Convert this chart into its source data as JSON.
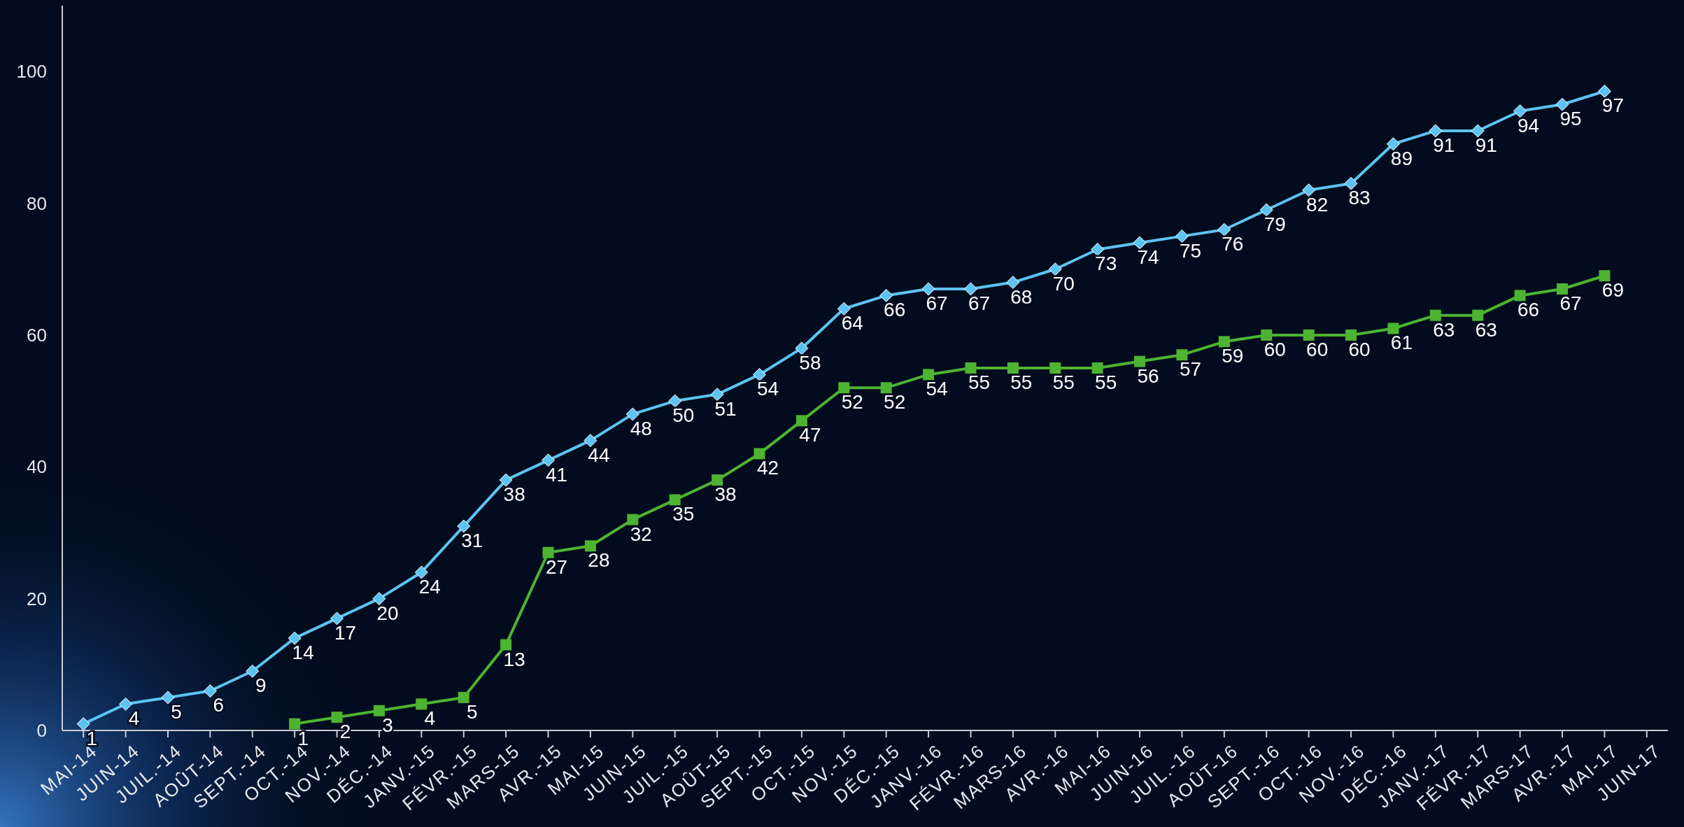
{
  "chart_data": {
    "type": "line",
    "categories": [
      "MAI-14",
      "JUIN-14",
      "JUIL.-14",
      "AOÛT-14",
      "SEPT.-14",
      "OCT.-14",
      "NOV.-14",
      "DÉC.-14",
      "JANV.-15",
      "FÉVR.-15",
      "MARS-15",
      "AVR.-15",
      "MAI-15",
      "JUIN-15",
      "JUIL.-15",
      "AOÛT-15",
      "SEPT.-15",
      "OCT.-15",
      "NOV.-15",
      "DÉC.-15",
      "JANV.-16",
      "FÉVR.-16",
      "MARS-16",
      "AVR.-16",
      "MAI-16",
      "JUIN-16",
      "JUIL.-16",
      "AOÛT-16",
      "SEPT.-16",
      "OCT.-16",
      "NOV.-16",
      "DÉC.-16",
      "JANV.-17",
      "FÉVR.-17",
      "MARS-17",
      "AVR.-17",
      "MAI-17",
      "JUIN-17"
    ],
    "series": [
      {
        "color": "#5cc3f2",
        "marker": "diamond",
        "values": [
          1,
          4,
          5,
          6,
          9,
          14,
          17,
          20,
          24,
          31,
          38,
          41,
          44,
          48,
          50,
          51,
          54,
          58,
          64,
          66,
          67,
          67,
          68,
          70,
          73,
          74,
          75,
          76,
          79,
          82,
          83,
          89,
          91,
          91,
          94,
          95,
          97,
          null
        ]
      },
      {
        "color": "#4db431",
        "marker": "square",
        "values": [
          null,
          null,
          null,
          null,
          null,
          1,
          2,
          3,
          4,
          5,
          13,
          27,
          28,
          32,
          35,
          38,
          42,
          47,
          52,
          52,
          54,
          55,
          55,
          55,
          55,
          56,
          57,
          59,
          60,
          60,
          60,
          61,
          63,
          63,
          66,
          67,
          69,
          null
        ]
      }
    ],
    "ylim": [
      0,
      110
    ],
    "yticks": [
      0,
      20,
      40,
      60,
      80,
      100
    ],
    "grid": false,
    "data_labels": true,
    "line_style": "solid"
  }
}
